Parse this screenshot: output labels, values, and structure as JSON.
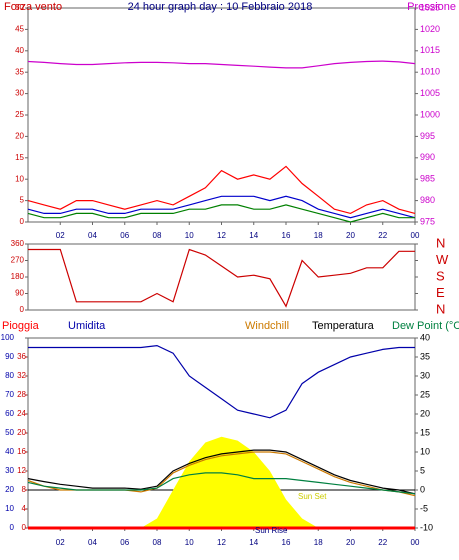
{
  "chart_data": [
    {
      "type": "line",
      "title": "24 hour graph day : 10 Febbraio 2018",
      "y_label": "Forza vento",
      "y2_label": "Pressione",
      "x": [
        0,
        1,
        2,
        3,
        4,
        5,
        6,
        7,
        8,
        9,
        10,
        11,
        12,
        13,
        14,
        15,
        16,
        17,
        18,
        19,
        20,
        21,
        22,
        23,
        24
      ],
      "xlim": [
        0,
        24
      ],
      "xticks": [
        {
          "value": 2,
          "label": "02"
        },
        {
          "value": 4,
          "label": "04"
        },
        {
          "value": 6,
          "label": "06"
        },
        {
          "value": 8,
          "label": "08"
        },
        10,
        12,
        14,
        16,
        18,
        20,
        22,
        {
          "value": 24,
          "label": "00"
        }
      ],
      "ylim": [
        0,
        50
      ],
      "yticks": [
        0,
        5,
        10,
        15,
        20,
        25,
        30,
        35,
        40,
        45,
        50
      ],
      "ycolor": "#cc0000",
      "y2lim": [
        975,
        1025
      ],
      "y2ticks": [
        975,
        980,
        985,
        990,
        995,
        1000,
        1005,
        1010,
        1015,
        1020,
        1025
      ],
      "y2color": "#cc00cc",
      "series": [
        {
          "color": "#ff0000",
          "values": [
            5,
            4,
            3,
            5,
            5,
            4,
            3,
            4,
            5,
            4,
            6,
            8,
            12,
            10,
            11,
            10,
            13,
            9,
            6,
            3,
            2,
            4,
            5,
            3,
            2
          ]
        },
        {
          "color": "#0000cc",
          "values": [
            3,
            2,
            2,
            3,
            3,
            2,
            2,
            3,
            3,
            3,
            4,
            5,
            6,
            6,
            6,
            5,
            6,
            5,
            3,
            2,
            1,
            2,
            3,
            2,
            1
          ]
        },
        {
          "color": "#008000",
          "values": [
            2,
            1,
            1,
            2,
            2,
            1,
            1,
            2,
            2,
            2,
            3,
            3,
            4,
            4,
            3,
            3,
            4,
            3,
            2,
            1,
            0,
            1,
            2,
            1,
            1
          ]
        },
        {
          "color": "#cc00cc",
          "axis": "y2",
          "values": [
            1012.5,
            1012.3,
            1012,
            1011.8,
            1011.8,
            1012,
            1012.2,
            1012.3,
            1012.3,
            1012.2,
            1012,
            1012,
            1011.8,
            1011.6,
            1011.4,
            1011.2,
            1011,
            1011,
            1011.5,
            1012,
            1012.3,
            1012.5,
            1012.6,
            1012.4,
            1012
          ]
        }
      ]
    },
    {
      "type": "line",
      "x": [
        0,
        1,
        2,
        3,
        4,
        5,
        6,
        7,
        8,
        9,
        10,
        11,
        12,
        13,
        14,
        15,
        16,
        17,
        18,
        19,
        20,
        21,
        22,
        23,
        24
      ],
      "xlim": [
        0,
        24
      ],
      "ylim": [
        0,
        360
      ],
      "yticks": [
        0,
        90,
        180,
        270,
        360
      ],
      "ycolor": "#cc0000",
      "y2ticks": [
        {
          "value": 360,
          "label": "N"
        },
        {
          "value": 270,
          "label": "W"
        },
        {
          "value": 180,
          "label": "S"
        },
        {
          "value": 90,
          "label": "E"
        },
        {
          "value": 0,
          "label": "N"
        }
      ],
      "y2color": "#cc0000",
      "series": [
        {
          "color": "#cc0000",
          "values": [
            330,
            330,
            330,
            45,
            45,
            45,
            45,
            45,
            90,
            45,
            330,
            300,
            240,
            180,
            190,
            170,
            20,
            270,
            180,
            190,
            200,
            230,
            230,
            320,
            320
          ]
        }
      ]
    },
    {
      "type": "line",
      "x": [
        0,
        1,
        2,
        3,
        4,
        5,
        6,
        7,
        8,
        9,
        10,
        11,
        12,
        13,
        14,
        15,
        16,
        17,
        18,
        19,
        20,
        21,
        22,
        23,
        24
      ],
      "xlim": [
        0,
        24
      ],
      "xticks": [
        {
          "value": 2,
          "label": "02"
        },
        {
          "value": 4,
          "label": "04"
        },
        {
          "value": 6,
          "label": "06"
        },
        {
          "value": 8,
          "label": "08"
        },
        10,
        12,
        14,
        16,
        18,
        20,
        22,
        {
          "value": 24,
          "label": "00"
        }
      ],
      "ylim": [
        0,
        100
      ],
      "yticks": [
        0,
        10,
        20,
        30,
        40,
        50,
        60,
        70,
        80,
        90,
        100
      ],
      "ycolor": "#0000aa",
      "y3lim": [
        0,
        40
      ],
      "y3ticks": [
        0,
        4,
        8,
        12,
        16,
        20,
        24,
        28,
        32,
        36
      ],
      "y3color": "#cc0000",
      "y2lim": [
        -10,
        40
      ],
      "y2ticks": [
        -10,
        -5,
        0,
        5,
        10,
        15,
        20,
        25,
        30,
        35,
        40
      ],
      "y2color": "#000000",
      "reference_line": 0,
      "annotations": [
        "Sun Rise",
        "Sun Set"
      ],
      "series": [
        {
          "style": "area",
          "color": "#ffff00",
          "values": [
            0,
            0,
            0,
            0,
            0,
            0,
            0,
            0,
            5,
            20,
            35,
            45,
            48,
            46,
            40,
            30,
            15,
            5,
            0,
            0,
            0,
            0,
            0,
            0,
            0
          ]
        },
        {
          "name": "Pioggia",
          "color": "#ff0000",
          "axis": "y3",
          "values": [
            0,
            0,
            0,
            0,
            0,
            0,
            0,
            0,
            0,
            0,
            0,
            0,
            0,
            0,
            0,
            0,
            0,
            0,
            0,
            0,
            0,
            0,
            0,
            0,
            0
          ]
        },
        {
          "name": "Umidita",
          "color": "#0000aa",
          "values": [
            95,
            95,
            95,
            95,
            95,
            95,
            95,
            95,
            96,
            92,
            80,
            74,
            68,
            62,
            60,
            58,
            62,
            76,
            82,
            86,
            90,
            92,
            94,
            95,
            95
          ]
        },
        {
          "name": "Windchill",
          "color": "#cc7a00",
          "axis": "y2",
          "values": [
            2.5,
            1,
            0,
            0,
            0,
            0,
            0,
            -0.5,
            0.5,
            4.5,
            6.5,
            8,
            9,
            9.5,
            10,
            10,
            9.5,
            7.5,
            5.5,
            3.5,
            2,
            1,
            0,
            -0.5,
            -1.5
          ]
        },
        {
          "name": "Temperatura",
          "color": "#000000",
          "axis": "y2",
          "values": [
            3,
            2.2,
            1.5,
            1,
            0.5,
            0.5,
            0.5,
            0.2,
            1,
            5,
            7,
            8.5,
            9.5,
            10,
            10.5,
            10.5,
            10,
            8,
            6,
            4,
            2.5,
            1.5,
            0.5,
            0,
            -1
          ]
        },
        {
          "name": "Dew Point (°C",
          "color": "#008040",
          "axis": "y2",
          "values": [
            2,
            1,
            0.5,
            0,
            0,
            0,
            0,
            0,
            0.5,
            3,
            4,
            4.5,
            4.5,
            4,
            3,
            3,
            3,
            2.5,
            2,
            1.5,
            1,
            0.5,
            0,
            -0.5,
            -1
          ]
        }
      ]
    }
  ]
}
